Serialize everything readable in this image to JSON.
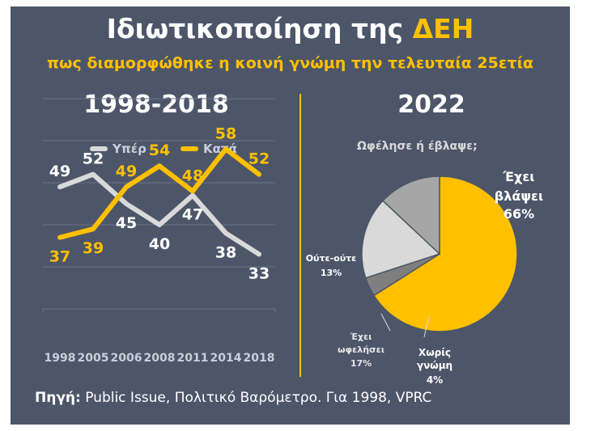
{
  "header": {
    "title_main": "Ιδιωτικοποίηση της",
    "title_accent": "ΔΕΗ",
    "subtitle": "πως διαμορφώθηκε η κοινή γνώμη την τελευταία 25ετία"
  },
  "left_panel": {
    "period": "1998-2018"
  },
  "right_panel": {
    "period": "2022",
    "question": "Ωφέλησε ή έβλαψε;"
  },
  "source": {
    "label": "Πηγή:",
    "text": "Public Issue, Πολιτικό Βαρόμετρο. Για 1998, VPRC"
  },
  "colors": {
    "background": "#4d5669",
    "accent": "#ffc000",
    "yper": "#d9d9d9",
    "harmed": "#ffc000",
    "neither": "#a6a6a6",
    "benefited": "#d9d9d9",
    "no_opinion": "#7f7f7f"
  },
  "chart_data": [
    {
      "type": "line",
      "categories": [
        "1998",
        "2005",
        "2006",
        "2008",
        "2011",
        "2014",
        "2018"
      ],
      "series": [
        {
          "name": "Υπέρ",
          "values": [
            49,
            52,
            45,
            40,
            47,
            38,
            33
          ]
        },
        {
          "name": "Κατά",
          "values": [
            37,
            39,
            49,
            54,
            48,
            58,
            52
          ]
        }
      ],
      "ylim": [
        20,
        70
      ],
      "grid": true,
      "legend": "top"
    },
    {
      "type": "pie",
      "title": "Ωφέλησε ή έβλαψε;",
      "slices": [
        {
          "label": "Έχει βλάψει",
          "value": 66,
          "display": "66%"
        },
        {
          "label": "Χωρίς γνώμη",
          "value": 4,
          "display": "4%"
        },
        {
          "label": "Έχει ωφελήσει",
          "value": 17,
          "display": "17%"
        },
        {
          "label": "Ούτε-ούτε",
          "value": 13,
          "display": "13%"
        }
      ]
    }
  ]
}
